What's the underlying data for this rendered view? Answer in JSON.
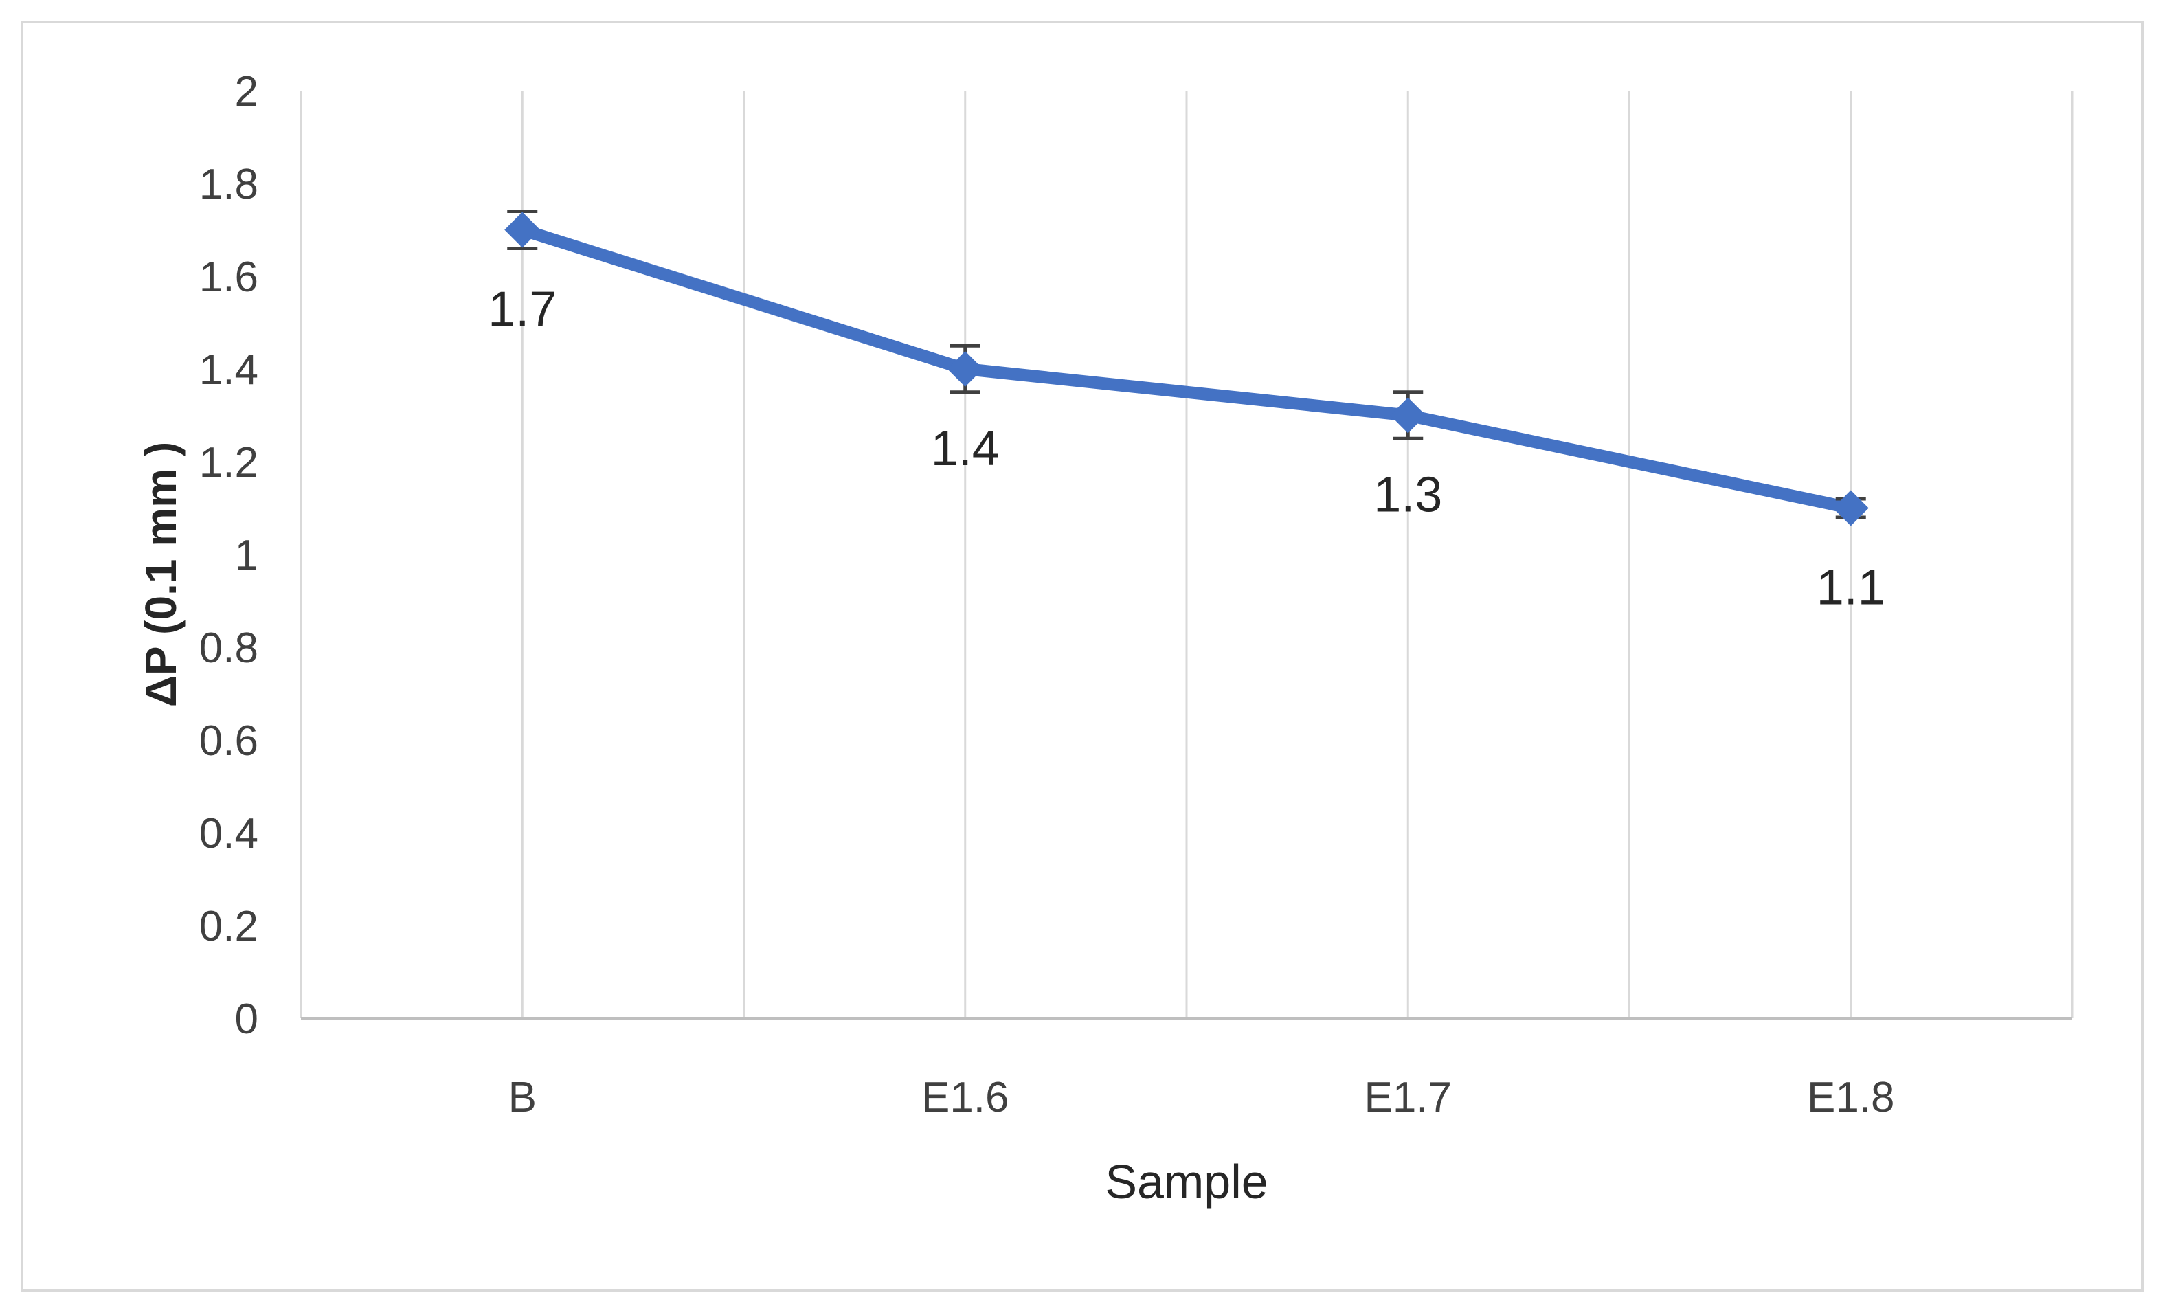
{
  "chart_data": {
    "type": "line",
    "categories": [
      "B",
      "E1.6",
      "E1.7",
      "E1.8"
    ],
    "series": [
      {
        "values": [
          1.7,
          1.4,
          1.3,
          1.1
        ],
        "error": [
          0.04,
          0.05,
          0.05,
          0.02
        ],
        "color": "#4472C4"
      }
    ],
    "data_labels": [
      "1.7",
      "1.4",
      "1.3",
      "1.1"
    ],
    "xlabel": "Sample",
    "ylabel": "ΔP (0.1 mm )",
    "ylim": [
      0,
      2
    ],
    "yticks": [
      "0",
      "0.2",
      "0.4",
      "0.6",
      "0.8",
      "1",
      "1.2",
      "1.4",
      "1.6",
      "1.8",
      "2"
    ],
    "grid": "vertical",
    "legend": "none"
  }
}
